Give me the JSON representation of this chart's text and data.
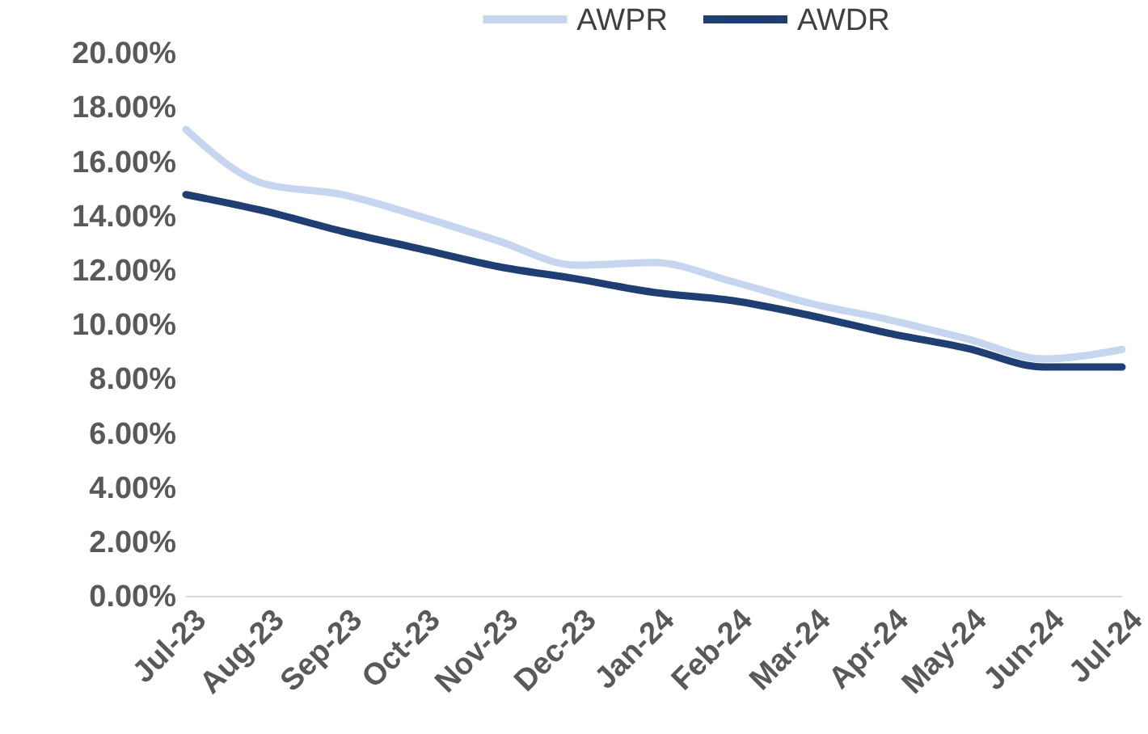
{
  "chart_data": {
    "type": "line",
    "categories": [
      "Jul-23",
      "Aug-23",
      "Sep-23",
      "Oct-23",
      "Nov-23",
      "Dec-23",
      "Jan-24",
      "Feb-24",
      "Mar-24",
      "Apr-24",
      "May-24",
      "Jun-24",
      "Jul-24"
    ],
    "series": [
      {
        "name": "AWPR",
        "color": "#c5d6ee",
        "values": [
          17.2,
          15.2,
          14.8,
          14.0,
          13.1,
          12.2,
          12.3,
          11.6,
          10.8,
          10.2,
          9.5,
          8.75,
          9.1
        ]
      },
      {
        "name": "AWDR",
        "color": "#1f3f73",
        "values": [
          14.8,
          14.2,
          13.45,
          12.8,
          12.15,
          11.7,
          11.2,
          10.9,
          10.35,
          9.7,
          9.15,
          8.45,
          8.45
        ]
      }
    ],
    "ylim": [
      0,
      20
    ],
    "yticks": [
      {
        "value": 0,
        "label": "0.00%"
      },
      {
        "value": 2,
        "label": "2.00%"
      },
      {
        "value": 4,
        "label": "4.00%"
      },
      {
        "value": 6,
        "label": "6.00%"
      },
      {
        "value": 8,
        "label": "8.00%"
      },
      {
        "value": 10,
        "label": "10.00%"
      },
      {
        "value": 12,
        "label": "12.00%"
      },
      {
        "value": 14,
        "label": "14.00%"
      },
      {
        "value": 16,
        "label": "16.00%"
      },
      {
        "value": 18,
        "label": "18.00%"
      },
      {
        "value": 20,
        "label": "20.00%"
      }
    ],
    "grid": false,
    "legend": "top",
    "marker": "none",
    "line_style": "solid"
  }
}
